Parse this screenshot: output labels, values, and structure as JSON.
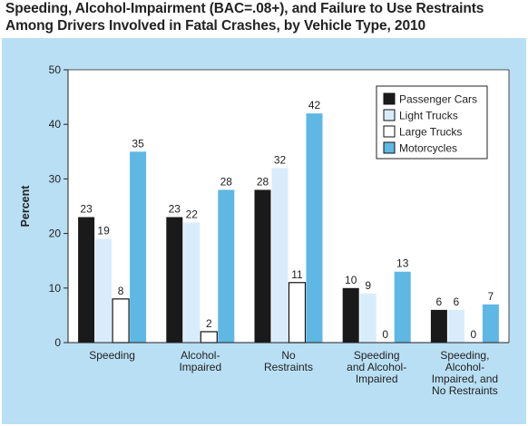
{
  "chart_data": {
    "type": "bar",
    "title_lines": [
      "Speeding, Alcohol-Impairment (BAC=.08+), and Failure to Use Restraints",
      "Among Drivers Involved in Fatal Crashes, by Vehicle Type, 2010"
    ],
    "ylabel": "Percent",
    "ylim": [
      0,
      50
    ],
    "yticks": [
      0,
      10,
      20,
      30,
      40,
      50
    ],
    "categories": [
      [
        "Speeding"
      ],
      [
        "Alcohol-",
        "Impaired"
      ],
      [
        "No",
        "Restraints"
      ],
      [
        "Speeding",
        "and Alcohol-",
        "Impaired"
      ],
      [
        "Speeding,",
        "Alcohol-",
        "Impaired, and",
        "No Restraints"
      ]
    ],
    "series": [
      {
        "name": "Passenger Cars",
        "color": "#1a1a1a",
        "values": [
          23,
          23,
          28,
          10,
          6
        ]
      },
      {
        "name": "Light Trucks",
        "color": "#d9ecfb",
        "values": [
          19,
          22,
          32,
          9,
          6
        ]
      },
      {
        "name": "Large Trucks",
        "color": "#ffffff",
        "values": [
          8,
          2,
          11,
          0,
          0
        ]
      },
      {
        "name": "Motorcycles",
        "color": "#5fb7e3",
        "values": [
          35,
          28,
          42,
          13,
          7
        ]
      }
    ],
    "legend": "top-right",
    "grid": false
  }
}
